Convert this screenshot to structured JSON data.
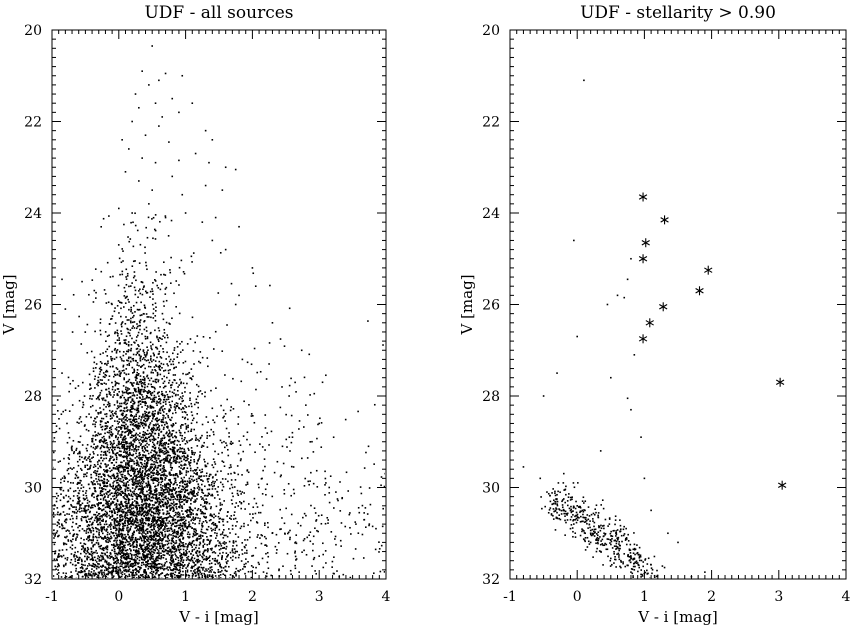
{
  "chart_data": [
    {
      "type": "scatter",
      "title": "UDF - all sources",
      "xlabel": "V - i [mag]",
      "ylabel": "V [mag]",
      "xlim": [
        -1,
        4
      ],
      "ylim": [
        32,
        20
      ],
      "y_inverted": true,
      "xticks": [
        "-1",
        "0",
        "1",
        "2",
        "3",
        "4"
      ],
      "yticks": [
        "20",
        "22",
        "24",
        "26",
        "28",
        "30",
        "32"
      ],
      "marker": "dot",
      "n_points_approx": 7000,
      "points": [
        [
          0.5,
          20.35
        ],
        [
          0.35,
          20.9
        ],
        [
          0.6,
          21.1
        ],
        [
          0.7,
          20.95
        ],
        [
          0.95,
          21.0
        ],
        [
          0.25,
          21.4
        ],
        [
          0.45,
          21.2
        ],
        [
          0.55,
          21.6
        ],
        [
          0.8,
          21.5
        ],
        [
          0.3,
          21.7
        ],
        [
          0.65,
          21.9
        ],
        [
          0.9,
          21.8
        ],
        [
          1.1,
          21.6
        ],
        [
          0.2,
          22.0
        ],
        [
          0.4,
          22.3
        ],
        [
          0.6,
          22.1
        ],
        [
          0.75,
          22.45
        ],
        [
          1.3,
          22.2
        ],
        [
          1.4,
          22.4
        ],
        [
          0.05,
          22.4
        ],
        [
          0.15,
          22.6
        ],
        [
          0.35,
          22.8
        ],
        [
          0.55,
          22.9
        ],
        [
          0.9,
          22.85
        ],
        [
          1.15,
          22.7
        ],
        [
          1.35,
          22.9
        ],
        [
          1.6,
          23.0
        ],
        [
          1.75,
          23.05
        ],
        [
          0.1,
          23.1
        ],
        [
          0.3,
          23.3
        ],
        [
          0.5,
          23.5
        ],
        [
          0.8,
          23.2
        ],
        [
          1.3,
          23.4
        ],
        [
          0.95,
          23.6
        ],
        [
          1.55,
          23.5
        ],
        [
          0.0,
          23.9
        ],
        [
          0.2,
          24.0
        ],
        [
          0.45,
          23.8
        ],
        [
          0.7,
          24.1
        ],
        [
          1.0,
          24.0
        ],
        [
          1.25,
          24.2
        ],
        [
          1.45,
          24.1
        ],
        [
          1.8,
          24.3
        ],
        [
          -0.55,
          25.5
        ],
        [
          -0.85,
          25.45
        ],
        [
          -0.8,
          26.1
        ],
        [
          1.4,
          24.6
        ],
        [
          1.6,
          24.8
        ],
        [
          2.0,
          25.2
        ],
        [
          2.05,
          25.6
        ],
        [
          1.8,
          25.8
        ],
        [
          1.75,
          26.0
        ],
        [
          2.3,
          26.4
        ],
        [
          1.85,
          27.2
        ],
        [
          2.25,
          27.3
        ],
        [
          2.55,
          28.0
        ],
        [
          2.8,
          28.2
        ],
        [
          3.0,
          28.6
        ],
        [
          3.05,
          27.7
        ],
        [
          2.45,
          29.1
        ],
        [
          2.6,
          28.9
        ],
        [
          3.1,
          29.9
        ],
        [
          3.15,
          30.0
        ],
        [
          3.25,
          30.1
        ],
        [
          3.55,
          30.8
        ],
        [
          3.6,
          30.55
        ],
        [
          3.75,
          30.8
        ],
        [
          3.8,
          30.85
        ],
        [
          3.85,
          30.9
        ],
        [
          -0.75,
          30.2
        ],
        [
          -0.8,
          31.55
        ],
        [
          -0.9,
          31.7
        ],
        [
          -0.7,
          29.1
        ],
        [
          -0.85,
          27.5
        ],
        [
          3.0,
          31.5
        ],
        [
          3.1,
          31.65
        ],
        [
          3.3,
          31.95
        ],
        [
          2.7,
          31.85
        ],
        [
          2.9,
          32.0
        ]
      ],
      "density_note": "Dense cloud centred near V-i 0 to 0.5, V 27 to 32, broadening toward faint magnitudes"
    },
    {
      "type": "scatter",
      "title": "UDF - stellarity > 0.90",
      "xlabel": "V - i [mag]",
      "ylabel": "V [mag]",
      "xlim": [
        -1,
        4
      ],
      "ylim": [
        32,
        20
      ],
      "y_inverted": true,
      "xticks": [
        "-1",
        "0",
        "1",
        "2",
        "3",
        "4"
      ],
      "yticks": [
        "20",
        "22",
        "24",
        "26",
        "28",
        "30",
        "32"
      ],
      "series": [
        {
          "marker": "star",
          "points": [
            [
              0.98,
              23.65
            ],
            [
              1.3,
              24.15
            ],
            [
              1.02,
              24.65
            ],
            [
              0.98,
              25.0
            ],
            [
              1.95,
              25.25
            ],
            [
              1.82,
              25.7
            ],
            [
              1.28,
              26.05
            ],
            [
              1.08,
              26.4
            ],
            [
              0.98,
              26.75
            ],
            [
              3.02,
              27.7
            ],
            [
              3.05,
              29.95
            ]
          ]
        },
        {
          "marker": "dot",
          "points": [
            [
              0.1,
              21.1
            ],
            [
              -0.05,
              24.6
            ],
            [
              0.45,
              26.0
            ],
            [
              0.6,
              25.8
            ],
            [
              0.75,
              25.45
            ],
            [
              0.8,
              25.0
            ],
            [
              0.7,
              25.85
            ],
            [
              0.0,
              26.7
            ],
            [
              0.85,
              27.1
            ],
            [
              0.5,
              27.6
            ],
            [
              0.75,
              28.05
            ],
            [
              0.8,
              28.3
            ],
            [
              -0.3,
              27.5
            ],
            [
              -0.5,
              28.0
            ],
            [
              0.95,
              28.9
            ],
            [
              1.0,
              29.8
            ],
            [
              0.35,
              29.2
            ],
            [
              -0.8,
              29.55
            ],
            [
              -0.55,
              29.8
            ],
            [
              1.1,
              30.5
            ],
            [
              1.35,
              31.0
            ],
            [
              1.5,
              31.2
            ],
            [
              1.9,
              31.85
            ],
            [
              1.7,
              31.95
            ],
            [
              1.3,
              31.75
            ],
            [
              -0.45,
              30.1
            ],
            [
              -0.35,
              30.35
            ],
            [
              -0.3,
              30.55
            ],
            [
              -0.2,
              30.25
            ],
            [
              -0.15,
              30.6
            ],
            [
              -0.05,
              30.8
            ],
            [
              0.0,
              30.4
            ],
            [
              0.05,
              30.75
            ],
            [
              0.1,
              30.95
            ],
            [
              0.15,
              30.6
            ],
            [
              0.2,
              31.0
            ],
            [
              0.25,
              30.85
            ],
            [
              0.3,
              31.1
            ],
            [
              0.35,
              31.25
            ],
            [
              0.4,
              31.0
            ],
            [
              0.45,
              31.35
            ],
            [
              0.5,
              31.15
            ],
            [
              0.55,
              31.45
            ],
            [
              0.6,
              31.3
            ],
            [
              0.65,
              31.6
            ],
            [
              0.7,
              31.45
            ],
            [
              0.75,
              31.7
            ],
            [
              0.8,
              31.55
            ],
            [
              0.85,
              31.8
            ],
            [
              0.9,
              31.65
            ],
            [
              0.95,
              31.9
            ],
            [
              -0.25,
              30.7
            ],
            [
              -0.1,
              30.9
            ],
            [
              0.05,
              31.05
            ],
            [
              0.2,
              31.2
            ],
            [
              0.35,
              31.4
            ],
            [
              0.5,
              31.55
            ],
            [
              0.65,
              31.75
            ],
            [
              0.8,
              31.85
            ],
            [
              -0.4,
              30.45
            ],
            [
              -0.28,
              29.9
            ],
            [
              -0.18,
              30.05
            ],
            [
              0.12,
              30.3
            ],
            [
              0.28,
              30.55
            ],
            [
              0.42,
              30.7
            ],
            [
              0.58,
              30.95
            ],
            [
              0.72,
              31.15
            ]
          ]
        }
      ]
    }
  ]
}
